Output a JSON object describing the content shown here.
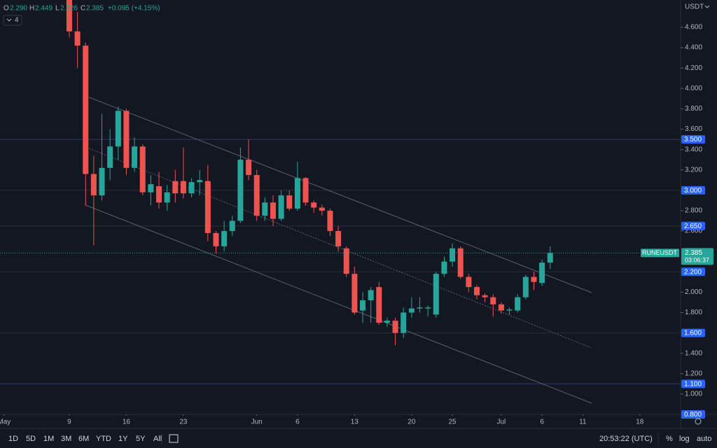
{
  "chart_data": {
    "type": "candlestick",
    "symbol": "RUNEUSDT",
    "currency": "USDT",
    "countdown": "03:06:37",
    "legend": {
      "o": "O",
      "o_value": "2.290",
      "h": "H",
      "h_value": "2.449",
      "l": "L",
      "l_value": "2.226",
      "c": "C",
      "c_value": "2.385",
      "change": "+0.095 (+4.15%)",
      "indicators": "4"
    },
    "up_color": "#26a69a",
    "down_color": "#ef5350",
    "open": [
      4.95,
      4.56,
      4.42,
      3.16,
      2.95,
      3.22,
      3.43,
      3.78,
      3.22,
      3.43,
      2.98,
      3.04,
      2.88,
      3.09,
      3.09,
      2.97,
      3.08,
      3.09,
      2.58,
      2.45,
      2.6,
      2.7,
      3.3,
      3.15,
      2.75,
      2.88,
      2.72,
      2.95,
      2.82,
      3.12,
      2.88,
      2.83,
      2.8,
      2.6,
      2.43,
      2.18,
      1.82,
      1.92,
      2.05,
      1.7,
      1.72,
      1.6,
      1.8,
      1.84,
      1.84,
      1.78,
      2.18,
      2.3,
      2.43,
      2.15,
      2.05,
      1.97,
      1.95,
      1.88,
      1.82,
      1.82,
      1.95,
      2.15,
      2.09,
      2.29
    ],
    "high": [
      5.05,
      4.75,
      4.45,
      3.34,
      3.75,
      3.6,
      3.82,
      3.8,
      3.52,
      3.45,
      3.15,
      3.18,
      3.05,
      3.2,
      3.42,
      3.12,
      3.2,
      3.25,
      2.6,
      2.7,
      2.75,
      3.42,
      3.5,
      3.2,
      2.93,
      2.95,
      3.0,
      3.0,
      3.28,
      3.13,
      2.9,
      2.86,
      2.82,
      2.65,
      2.45,
      2.25,
      2.0,
      2.05,
      2.1,
      1.75,
      1.75,
      1.85,
      1.95,
      1.95,
      1.87,
      2.2,
      2.35,
      2.48,
      2.45,
      2.18,
      2.07,
      1.99,
      1.98,
      1.9,
      1.85,
      1.98,
      2.17,
      2.2,
      2.32,
      2.449
    ],
    "low": [
      4.5,
      4.2,
      2.85,
      2.46,
      2.9,
      3.1,
      3.3,
      3.15,
      3.18,
      2.95,
      2.85,
      2.82,
      2.8,
      2.88,
      2.92,
      2.93,
      2.95,
      2.5,
      2.38,
      2.4,
      2.55,
      2.68,
      3.1,
      2.7,
      2.7,
      2.65,
      2.7,
      2.8,
      2.8,
      2.85,
      2.78,
      2.75,
      2.55,
      2.4,
      2.15,
      1.78,
      1.7,
      1.7,
      1.68,
      1.66,
      1.48,
      1.55,
      1.75,
      1.8,
      1.76,
      1.75,
      2.15,
      2.25,
      2.13,
      2.0,
      1.93,
      1.9,
      1.76,
      1.79,
      1.78,
      1.8,
      1.93,
      2.02,
      2.06,
      2.226
    ],
    "close": [
      4.56,
      4.42,
      3.16,
      2.95,
      3.22,
      3.43,
      3.78,
      3.22,
      3.43,
      2.98,
      3.06,
      2.88,
      2.98,
      2.97,
      2.97,
      3.08,
      3.1,
      2.58,
      2.45,
      2.6,
      2.7,
      3.3,
      3.15,
      2.75,
      2.88,
      2.72,
      2.95,
      2.82,
      3.12,
      2.88,
      2.83,
      2.8,
      2.6,
      2.45,
      2.18,
      1.8,
      1.92,
      2.02,
      1.7,
      1.72,
      1.6,
      1.8,
      1.84,
      1.85,
      1.85,
      2.18,
      2.3,
      2.43,
      2.15,
      2.05,
      1.97,
      1.95,
      1.88,
      1.82,
      1.83,
      1.95,
      2.15,
      2.1,
      2.29,
      2.385
    ],
    "xlim": [
      -8.5,
      75
    ],
    "xticks": [
      {
        "value": -8,
        "label": "May"
      },
      {
        "value": 0,
        "label": "9"
      },
      {
        "value": 7,
        "label": "16"
      },
      {
        "value": 14,
        "label": "23"
      },
      {
        "value": 23,
        "label": "Jun"
      },
      {
        "value": 28,
        "label": "6"
      },
      {
        "value": 35,
        "label": "13"
      },
      {
        "value": 42,
        "label": "20"
      },
      {
        "value": 47,
        "label": "25"
      },
      {
        "value": 53,
        "label": "Jul"
      },
      {
        "value": 58,
        "label": "6"
      },
      {
        "value": 63,
        "label": "11"
      },
      {
        "value": 70,
        "label": "18"
      }
    ],
    "ylim": [
      0.8,
      4.868
    ],
    "yticks": [
      {
        "value": 4.6,
        "label": "4.600"
      },
      {
        "value": 4.4,
        "label": "4.400"
      },
      {
        "value": 4.2,
        "label": "4.200"
      },
      {
        "value": 4.0,
        "label": "4.000"
      },
      {
        "value": 3.8,
        "label": "3.800"
      },
      {
        "value": 3.6,
        "label": "3.600"
      },
      {
        "value": 3.4,
        "label": "3.400"
      },
      {
        "value": 3.2,
        "label": "3.200"
      },
      {
        "value": 2.8,
        "label": "2.800"
      },
      {
        "value": 2.6,
        "label": "2.600"
      },
      {
        "value": 2.0,
        "label": "2.000"
      },
      {
        "value": 1.8,
        "label": "1.800"
      },
      {
        "value": 1.4,
        "label": "1.400"
      },
      {
        "value": 1.2,
        "label": "1.200"
      },
      {
        "value": 1.0,
        "label": "1.000"
      }
    ],
    "levels": [
      {
        "value": 3.5,
        "label": "3.500"
      },
      {
        "value": 3.0,
        "label": "3.000"
      },
      {
        "value": 2.65,
        "label": "2.650"
      },
      {
        "value": 2.2,
        "label": "2.200"
      },
      {
        "value": 1.6,
        "label": "1.600"
      },
      {
        "value": 1.1,
        "label": "1.100"
      },
      {
        "value": 0.8,
        "label": "0.800"
      }
    ],
    "level_color": "#2962ff"
  },
  "toolbar": {
    "ranges": [
      "1D",
      "5D",
      "1M",
      "3M",
      "6M",
      "YTD",
      "1Y",
      "5Y",
      "All"
    ],
    "clock": "20:53:22 (UTC)",
    "percent": "%",
    "log": "log",
    "auto": "auto"
  }
}
